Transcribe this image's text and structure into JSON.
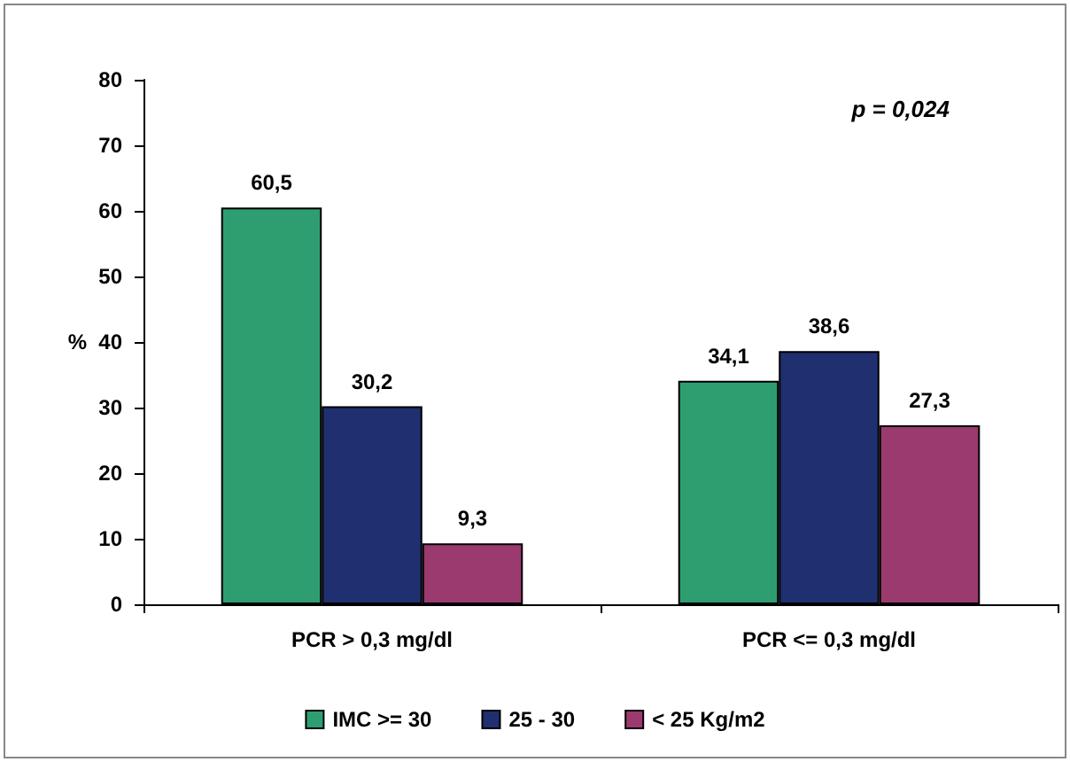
{
  "chart_data": {
    "type": "bar",
    "ylabel": "%",
    "categories": [
      "PCR > 0,3 mg/dl",
      "PCR <= 0,3 mg/dl"
    ],
    "series": [
      {
        "name": "IMC >= 30",
        "color": "#2e9e70",
        "values": [
          60.5,
          34.1
        ],
        "value_labels": [
          "60,5",
          "34,1"
        ]
      },
      {
        "name": "25 - 30",
        "color": "#1f2f6f",
        "values": [
          30.2,
          38.6
        ],
        "value_labels": [
          "30,2",
          "38,6"
        ]
      },
      {
        "name": "< 25 Kg/m2",
        "color": "#9b3a6e",
        "values": [
          9.3,
          27.3
        ],
        "value_labels": [
          "9,3",
          "27,3"
        ]
      }
    ],
    "ylim": [
      0,
      80
    ],
    "yticks": [
      0,
      10,
      20,
      30,
      40,
      50,
      60,
      70,
      80
    ],
    "grid": false,
    "legend": "bottom",
    "annotations": [
      "p = 0,024"
    ]
  }
}
